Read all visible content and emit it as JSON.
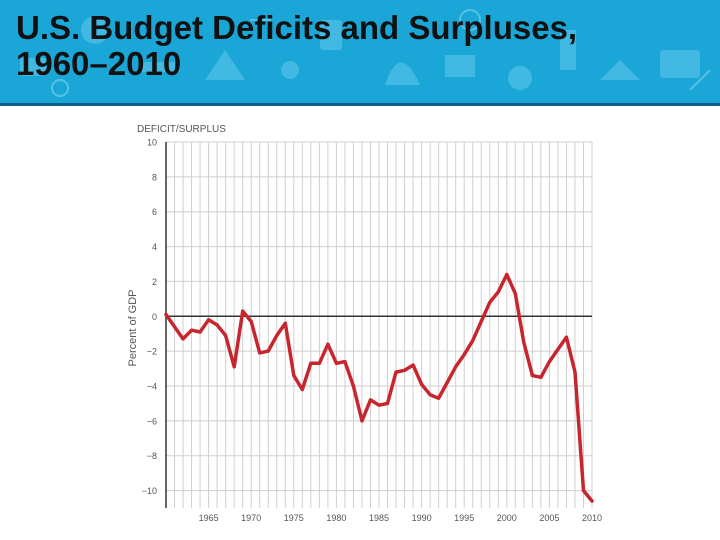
{
  "slide": {
    "title_line1": "U.S. Budget Deficits and Surpluses,",
    "title_line2": "1960–2010"
  },
  "colors": {
    "banner": "#1aa6d6",
    "banner_dark": "#0d5f86",
    "line": "#c8262e",
    "grid": "#cfcfcf",
    "text": "#555555"
  },
  "chart_data": {
    "type": "line",
    "title": "DEFICIT/SURPLUS",
    "xlabel": "",
    "ylabel": "Percent of GDP",
    "xlim": [
      1960,
      2010
    ],
    "ylim": [
      -11,
      10
    ],
    "x_ticks": [
      "1965",
      "1970",
      "1975",
      "1980",
      "1985",
      "1990",
      "1995",
      "2000",
      "2005",
      "2010"
    ],
    "y_ticks": [
      "10",
      "8",
      "6",
      "4",
      "2",
      "0",
      "−2",
      "−4",
      "−6",
      "−8",
      "−10"
    ],
    "y_tick_values": [
      10,
      8,
      6,
      4,
      2,
      0,
      -2,
      -4,
      -6,
      -8,
      -10
    ],
    "grid": true,
    "series": [
      {
        "x": [
          1960,
          1961,
          1962,
          1963,
          1964,
          1965,
          1966,
          1967,
          1968,
          1969,
          1970,
          1971,
          1972,
          1973,
          1974,
          1975,
          1976,
          1977,
          1978,
          1979,
          1980,
          1981,
          1982,
          1983,
          1984,
          1985,
          1986,
          1987,
          1988,
          1989,
          1990,
          1991,
          1992,
          1993,
          1994,
          1995,
          1996,
          1997,
          1998,
          1999,
          2000,
          2001,
          2002,
          2003,
          2004,
          2005,
          2006,
          2007,
          2008,
          2009,
          2010
        ],
        "y": [
          0.1,
          -0.6,
          -1.3,
          -0.8,
          -0.9,
          -0.2,
          -0.5,
          -1.1,
          -2.9,
          0.3,
          -0.3,
          -2.1,
          -2.0,
          -1.1,
          -0.4,
          -3.4,
          -4.2,
          -2.7,
          -2.7,
          -1.6,
          -2.7,
          -2.6,
          -4.0,
          -6.0,
          -4.8,
          -5.1,
          -5.0,
          -3.2,
          -3.1,
          -2.8,
          -3.9,
          -4.5,
          -4.7,
          -3.8,
          -2.9,
          -2.2,
          -1.4,
          -0.3,
          0.8,
          1.4,
          2.4,
          1.3,
          -1.5,
          -3.4,
          -3.5,
          -2.6,
          -1.9,
          -1.2,
          -3.2,
          -10.0,
          -10.6
        ]
      }
    ]
  }
}
